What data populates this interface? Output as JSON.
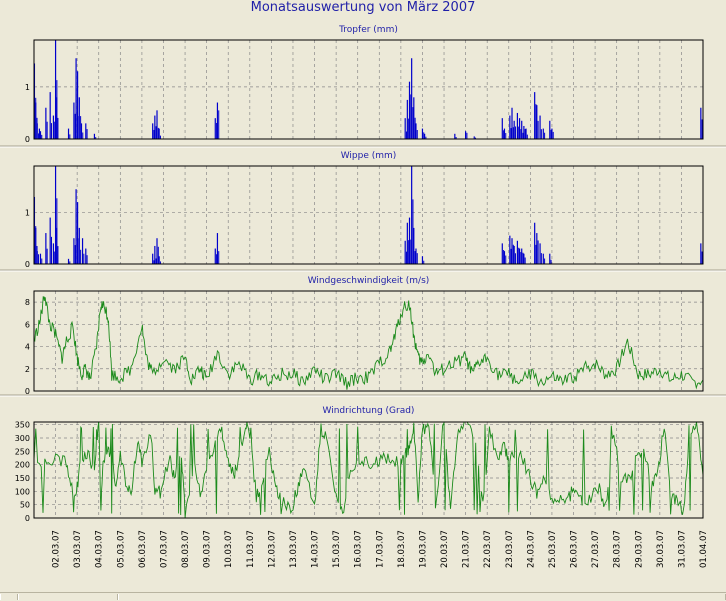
{
  "page": {
    "title": "Monatsauswertung von März 2007"
  },
  "colors": {
    "rain": "#0000cc",
    "wind": "#1b8a1b",
    "title": "#1f1fa8",
    "axis": "#000000",
    "grid": "#888888"
  },
  "x_ticks": [
    "02.03.07",
    "03.03.07",
    "04.03.07",
    "05.03.07",
    "06.03.07",
    "07.03.07",
    "08.03.07",
    "09.03.07",
    "10.03.07",
    "11.03.07",
    "12.03.07",
    "13.03.07",
    "14.03.07",
    "15.03.07",
    "16.03.07",
    "17.03.07",
    "18.03.07",
    "19.03.07",
    "20.03.07",
    "21.03.07",
    "22.03.07",
    "23.03.07",
    "24.03.07",
    "25.03.07",
    "26.03.07",
    "27.03.07",
    "28.03.07",
    "29.03.07",
    "30.03.07",
    "31.03.07",
    "01.04.07"
  ],
  "chart_data": [
    {
      "type": "bar",
      "title": "Tropfer (mm)",
      "ylim": [
        0,
        1.9
      ],
      "yticks": [
        0,
        1
      ],
      "x_range_days": [
        1,
        32
      ],
      "grid": true,
      "series_points": [
        [
          1.02,
          1.45
        ],
        [
          1.08,
          0.7
        ],
        [
          1.15,
          0.3
        ],
        [
          1.25,
          0.2
        ],
        [
          1.3,
          0.15
        ],
        [
          1.55,
          0.6
        ],
        [
          1.75,
          0.9
        ],
        [
          1.9,
          0.45
        ],
        [
          2.0,
          1.9
        ],
        [
          2.05,
          0.8
        ],
        [
          2.6,
          0.2
        ],
        [
          2.85,
          0.7
        ],
        [
          2.95,
          1.55
        ],
        [
          3.02,
          1.3
        ],
        [
          3.1,
          0.8
        ],
        [
          3.2,
          0.3
        ],
        [
          3.4,
          0.3
        ],
        [
          3.8,
          0.1
        ],
        [
          6.5,
          0.3
        ],
        [
          6.6,
          0.45
        ],
        [
          6.7,
          0.55
        ],
        [
          6.8,
          0.2
        ],
        [
          9.4,
          0.4
        ],
        [
          9.5,
          0.7
        ],
        [
          18.2,
          0.4
        ],
        [
          18.3,
          0.75
        ],
        [
          18.4,
          1.1
        ],
        [
          18.5,
          1.55
        ],
        [
          18.6,
          0.8
        ],
        [
          18.7,
          0.3
        ],
        [
          19.0,
          0.2
        ],
        [
          19.1,
          0.1
        ],
        [
          20.5,
          0.1
        ],
        [
          21.0,
          0.15
        ],
        [
          21.4,
          0.05
        ],
        [
          22.7,
          0.4
        ],
        [
          22.8,
          0.2
        ],
        [
          23.05,
          0.45
        ],
        [
          23.15,
          0.6
        ],
        [
          23.25,
          0.35
        ],
        [
          23.4,
          0.5
        ],
        [
          23.5,
          0.4
        ],
        [
          23.6,
          0.35
        ],
        [
          23.7,
          0.25
        ],
        [
          23.8,
          0.2
        ],
        [
          24.2,
          0.9
        ],
        [
          24.3,
          0.65
        ],
        [
          24.45,
          0.45
        ],
        [
          24.6,
          0.2
        ],
        [
          24.9,
          0.35
        ],
        [
          25.0,
          0.2
        ],
        [
          31.9,
          0.6
        ]
      ]
    },
    {
      "type": "bar",
      "title": "Wippe (mm)",
      "ylim": [
        0,
        1.9
      ],
      "yticks": [
        0,
        1
      ],
      "x_range_days": [
        1,
        32
      ],
      "grid": true,
      "series_points": [
        [
          1.02,
          1.3
        ],
        [
          1.08,
          0.7
        ],
        [
          1.15,
          0.25
        ],
        [
          1.3,
          0.2
        ],
        [
          1.55,
          0.6
        ],
        [
          1.75,
          0.9
        ],
        [
          1.9,
          0.4
        ],
        [
          2.0,
          1.9
        ],
        [
          2.05,
          0.7
        ],
        [
          2.6,
          0.1
        ],
        [
          2.85,
          0.5
        ],
        [
          2.95,
          1.45
        ],
        [
          3.02,
          1.2
        ],
        [
          3.1,
          0.7
        ],
        [
          3.25,
          0.5
        ],
        [
          3.4,
          0.3
        ],
        [
          6.5,
          0.2
        ],
        [
          6.6,
          0.35
        ],
        [
          6.7,
          0.5
        ],
        [
          6.8,
          0.15
        ],
        [
          9.4,
          0.3
        ],
        [
          9.5,
          0.6
        ],
        [
          18.2,
          0.45
        ],
        [
          18.3,
          0.8
        ],
        [
          18.4,
          0.9
        ],
        [
          18.5,
          1.9
        ],
        [
          18.6,
          0.7
        ],
        [
          18.7,
          0.3
        ],
        [
          19.0,
          0.15
        ],
        [
          22.7,
          0.4
        ],
        [
          22.8,
          0.25
        ],
        [
          23.05,
          0.55
        ],
        [
          23.15,
          0.5
        ],
        [
          23.25,
          0.35
        ],
        [
          23.4,
          0.45
        ],
        [
          23.5,
          0.3
        ],
        [
          23.6,
          0.3
        ],
        [
          23.7,
          0.2
        ],
        [
          24.2,
          0.8
        ],
        [
          24.3,
          0.6
        ],
        [
          24.45,
          0.4
        ],
        [
          24.6,
          0.2
        ],
        [
          24.9,
          0.2
        ],
        [
          31.9,
          0.4
        ]
      ]
    },
    {
      "type": "line",
      "title": "Windgeschwindigkeit (m/s)",
      "ylim": [
        0,
        9
      ],
      "yticks": [
        0,
        2,
        4,
        6,
        8
      ],
      "x_range_days": [
        1,
        32
      ],
      "grid": true,
      "keypoints": [
        [
          1.0,
          4.5
        ],
        [
          1.3,
          6.5
        ],
        [
          1.5,
          8.8
        ],
        [
          1.7,
          6.2
        ],
        [
          2.0,
          5.0
        ],
        [
          2.3,
          3.0
        ],
        [
          2.5,
          4.5
        ],
        [
          2.8,
          5.8
        ],
        [
          3.0,
          3.0
        ],
        [
          3.2,
          1.5
        ],
        [
          3.4,
          2.0
        ],
        [
          3.6,
          1.0
        ],
        [
          3.9,
          4.0
        ],
        [
          4.1,
          7.8
        ],
        [
          4.3,
          7.5
        ],
        [
          4.45,
          6.5
        ],
        [
          4.6,
          1.5
        ],
        [
          5.0,
          1.2
        ],
        [
          5.5,
          2.0
        ],
        [
          6.0,
          6.0
        ],
        [
          6.2,
          3.0
        ],
        [
          6.5,
          1.5
        ],
        [
          7.0,
          3.0
        ],
        [
          7.5,
          2.0
        ],
        [
          8.0,
          3.0
        ],
        [
          8.3,
          1.0
        ],
        [
          8.7,
          2.0
        ],
        [
          9.0,
          1.0
        ],
        [
          9.5,
          3.5
        ],
        [
          10.0,
          1.5
        ],
        [
          10.5,
          2.5
        ],
        [
          11.0,
          1.0
        ],
        [
          11.5,
          1.5
        ],
        [
          12.0,
          0.8
        ],
        [
          12.5,
          1.5
        ],
        [
          13.0,
          1.5
        ],
        [
          13.5,
          0.8
        ],
        [
          14.0,
          2.0
        ],
        [
          14.5,
          1.0
        ],
        [
          15.0,
          1.5
        ],
        [
          15.5,
          0.7
        ],
        [
          16.0,
          1.2
        ],
        [
          16.5,
          1.2
        ],
        [
          17.0,
          2.5
        ],
        [
          17.5,
          3.5
        ],
        [
          17.8,
          5.5
        ],
        [
          18.1,
          7.5
        ],
        [
          18.4,
          7.8
        ],
        [
          18.6,
          5.0
        ],
        [
          18.8,
          3.0
        ],
        [
          19.0,
          2.5
        ],
        [
          19.3,
          3.5
        ],
        [
          19.6,
          1.5
        ],
        [
          20.0,
          2.0
        ],
        [
          20.5,
          2.5
        ],
        [
          21.0,
          3.0
        ],
        [
          21.3,
          1.5
        ],
        [
          21.6,
          2.5
        ],
        [
          22.0,
          3.0
        ],
        [
          22.5,
          1.5
        ],
        [
          23.0,
          1.5
        ],
        [
          23.5,
          0.8
        ],
        [
          24.0,
          1.5
        ],
        [
          24.5,
          0.8
        ],
        [
          25.0,
          1.2
        ],
        [
          25.5,
          0.8
        ],
        [
          26.0,
          1.2
        ],
        [
          26.5,
          2.0
        ],
        [
          27.0,
          2.5
        ],
        [
          27.5,
          1.5
        ],
        [
          28.0,
          2.0
        ],
        [
          28.5,
          4.5
        ],
        [
          29.0,
          1.5
        ],
        [
          29.5,
          1.5
        ],
        [
          30.0,
          2.0
        ],
        [
          30.5,
          1.0
        ],
        [
          31.0,
          1.5
        ],
        [
          31.5,
          0.8
        ],
        [
          32.0,
          1.0
        ]
      ]
    },
    {
      "type": "line",
      "title": "Windrichtung (Grad)",
      "ylim": [
        0,
        360
      ],
      "yticks": [
        0,
        50,
        100,
        150,
        200,
        250,
        300,
        350
      ],
      "x_range_days": [
        1,
        32
      ],
      "grid": true,
      "keypoints": [
        [
          1.0,
          215
        ],
        [
          1.5,
          215
        ],
        [
          2.0,
          225
        ],
        [
          2.5,
          210
        ],
        [
          2.8,
          90
        ],
        [
          3.0,
          120
        ],
        [
          3.2,
          230
        ],
        [
          3.5,
          240
        ],
        [
          3.8,
          180
        ],
        [
          4.0,
          360
        ],
        [
          4.1,
          30
        ],
        [
          4.2,
          200
        ],
        [
          4.4,
          250
        ],
        [
          4.6,
          250
        ],
        [
          4.8,
          100
        ],
        [
          5.0,
          240
        ],
        [
          5.3,
          120
        ],
        [
          5.5,
          80
        ],
        [
          5.8,
          300
        ],
        [
          6.0,
          200
        ],
        [
          6.4,
          330
        ],
        [
          6.6,
          110
        ],
        [
          6.9,
          90
        ],
        [
          7.3,
          250
        ],
        [
          7.5,
          140
        ],
        [
          7.8,
          260
        ],
        [
          8.0,
          20
        ],
        [
          8.4,
          200
        ],
        [
          8.7,
          90
        ],
        [
          9.0,
          180
        ],
        [
          9.4,
          290
        ],
        [
          9.7,
          330
        ],
        [
          10.0,
          200
        ],
        [
          10.3,
          170
        ],
        [
          10.5,
          230
        ],
        [
          10.8,
          360
        ],
        [
          11.0,
          320
        ],
        [
          11.3,
          80
        ],
        [
          11.6,
          150
        ],
        [
          11.9,
          250
        ],
        [
          12.2,
          110
        ],
        [
          12.5,
          60
        ],
        [
          12.9,
          40
        ],
        [
          13.2,
          100
        ],
        [
          13.5,
          200
        ],
        [
          14.0,
          50
        ],
        [
          14.3,
          330
        ],
        [
          14.6,
          300
        ],
        [
          15.0,
          80
        ],
        [
          15.3,
          40
        ],
        [
          15.6,
          150
        ],
        [
          16.0,
          200
        ],
        [
          16.4,
          210
        ],
        [
          16.8,
          210
        ],
        [
          17.2,
          220
        ],
        [
          17.6,
          220
        ],
        [
          18.0,
          210
        ],
        [
          18.2,
          240
        ],
        [
          18.4,
          270
        ],
        [
          18.6,
          350
        ],
        [
          18.8,
          60
        ],
        [
          19.0,
          330
        ],
        [
          19.3,
          350
        ],
        [
          19.6,
          40
        ],
        [
          20.0,
          350
        ],
        [
          20.3,
          30
        ],
        [
          20.6,
          300
        ],
        [
          21.0,
          360
        ],
        [
          21.4,
          310
        ],
        [
          21.8,
          40
        ],
        [
          22.1,
          330
        ],
        [
          22.5,
          220
        ],
        [
          22.8,
          280
        ],
        [
          23.0,
          200
        ],
        [
          23.3,
          250
        ],
        [
          23.6,
          230
        ],
        [
          24.0,
          150
        ],
        [
          24.3,
          90
        ],
        [
          24.6,
          150
        ],
        [
          25.0,
          60
        ],
        [
          25.4,
          80
        ],
        [
          25.8,
          80
        ],
        [
          26.1,
          120
        ],
        [
          26.4,
          60
        ],
        [
          26.8,
          80
        ],
        [
          27.2,
          110
        ],
        [
          27.5,
          40
        ],
        [
          27.8,
          320
        ],
        [
          28.2,
          160
        ],
        [
          28.6,
          150
        ],
        [
          29.0,
          250
        ],
        [
          29.3,
          250
        ],
        [
          29.6,
          110
        ],
        [
          29.9,
          170
        ],
        [
          30.2,
          340
        ],
        [
          30.5,
          80
        ],
        [
          30.8,
          60
        ],
        [
          31.1,
          20
        ],
        [
          31.4,
          300
        ],
        [
          31.7,
          350
        ],
        [
          32.0,
          160
        ]
      ]
    }
  ]
}
